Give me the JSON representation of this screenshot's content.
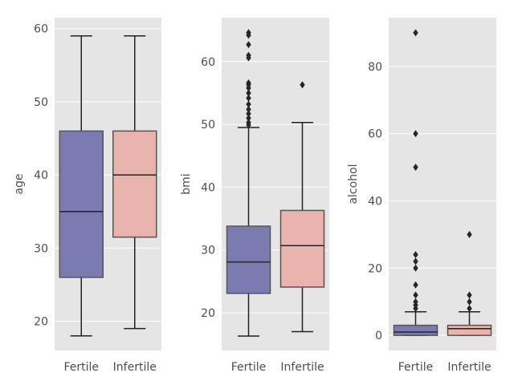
{
  "colors": {
    "Fertile": "#7b7bb1",
    "Infertile": "#e8b4ad",
    "background": "#e5e5e5",
    "line": "#222222"
  },
  "chart_data": [
    {
      "type": "box",
      "ylabel": "age",
      "categories": [
        "Fertile",
        "Infertile"
      ],
      "yticks": [
        20,
        30,
        40,
        50,
        60
      ],
      "ylim": [
        16,
        61.5
      ],
      "boxes": [
        {
          "category": "Fertile",
          "whisker_low": 18,
          "q1": 26,
          "median": 35,
          "q3": 46,
          "whisker_high": 59,
          "outliers": []
        },
        {
          "category": "Infertile",
          "whisker_low": 19,
          "q1": 31.5,
          "median": 40,
          "q3": 46,
          "whisker_high": 59,
          "outliers": []
        }
      ]
    },
    {
      "type": "box",
      "ylabel": "bmi",
      "categories": [
        "Fertile",
        "Infertile"
      ],
      "yticks": [
        20,
        30,
        40,
        50,
        60
      ],
      "ylim": [
        14,
        67
      ],
      "boxes": [
        {
          "category": "Fertile",
          "whisker_low": 16.3,
          "q1": 23.1,
          "median": 28.1,
          "q3": 33.8,
          "whisker_high": 49.5,
          "outliers": [
            49.9,
            50.3,
            51.0,
            51.7,
            52.4,
            53.2,
            54.2,
            55.0,
            55.8,
            56.3,
            56.6,
            60.6,
            61.0,
            62.7,
            64.2,
            64.6
          ]
        },
        {
          "category": "Infertile",
          "whisker_low": 17.0,
          "q1": 24.1,
          "median": 30.7,
          "q3": 36.3,
          "whisker_high": 50.3,
          "outliers": [
            56.3
          ]
        }
      ]
    },
    {
      "type": "box",
      "ylabel": "alcohol",
      "categories": [
        "Fertile",
        "Infertile"
      ],
      "yticks": [
        0,
        20,
        40,
        60,
        80
      ],
      "ylim": [
        -4.5,
        94.5
      ],
      "boxes": [
        {
          "category": "Fertile",
          "whisker_low": 0,
          "q1": 0,
          "median": 1,
          "q3": 3,
          "whisker_high": 7,
          "outliers": [
            8,
            9,
            10,
            12,
            15,
            20,
            22,
            24,
            50,
            60,
            90
          ]
        },
        {
          "category": "Infertile",
          "whisker_low": 0,
          "q1": 0,
          "median": 2,
          "q3": 3,
          "whisker_high": 7,
          "outliers": [
            8,
            10,
            12,
            30
          ]
        }
      ]
    }
  ]
}
